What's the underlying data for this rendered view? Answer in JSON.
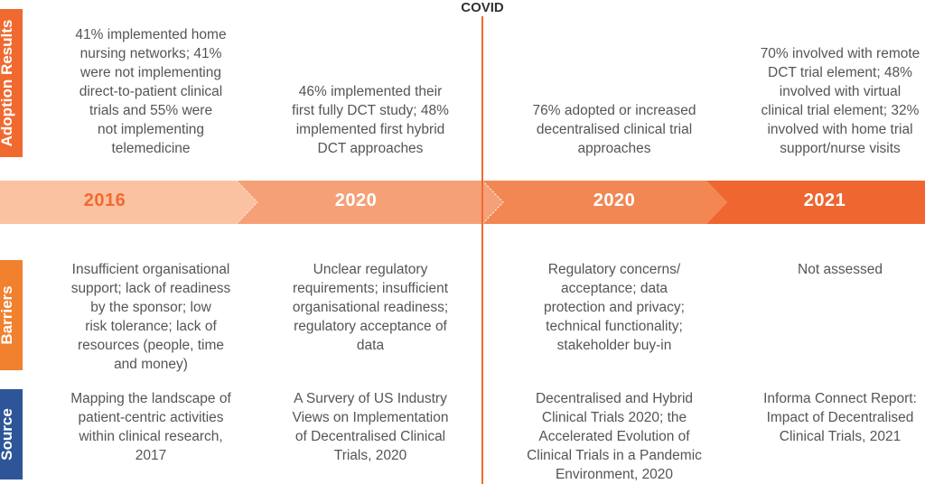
{
  "covid_label": "COVID",
  "row_labels": {
    "adoption": "Adoption Results",
    "barriers": "Barriers",
    "source": "Source"
  },
  "colors": {
    "adoption": "#f06a30",
    "barriers": "#f1802f",
    "source": "#2e5597",
    "seg1": "#fbc2a2",
    "seg2": "#f5a077",
    "seg3": "#f28753",
    "seg4": "#ef6631"
  },
  "columns": [
    {
      "year": "2016",
      "adoption": "41% implemented home\nnursing networks; 41%\nwere not implementing\ndirect-to-patient clinical\ntrials and 55% were\nnot implementing\ntelemedicine",
      "barriers": "Insufficient organisational\nsupport; lack of readiness\nby the sponsor; low\nrisk tolerance; lack of\nresources (people, time\nand money)",
      "source": "Mapping the landscape of\npatient-centric activities\nwithin clinical research,\n2017"
    },
    {
      "year": "2020",
      "adoption": "46% implemented their\nfirst fully DCT study; 48%\nimplemented first hybrid\nDCT approaches",
      "barriers": "Unclear regulatory\nrequirements; insufficient\norganisational readiness;\nregulatory acceptance of\ndata",
      "source": "A Survery of US Industry\nViews on Implementation\nof Decentralised Clinical\nTrials, 2020"
    },
    {
      "year": "2020",
      "adoption": "76% adopted or increased\ndecentralised clinical trial\napproaches",
      "barriers": "Regulatory concerns/\nacceptance; data\nprotection and privacy;\ntechnical functionality;\nstakeholder buy-in",
      "source": "Decentralised and Hybrid\nClinical Trials 2020; the\nAccelerated Evolution of\nClinical Trials in a Pandemic\nEnvironment, 2020"
    },
    {
      "year": "2021",
      "adoption": "70% involved with remote\nDCT trial element; 48%\ninvolved with virtual\nclinical trial element; 32%\ninvolved with home trial\nsupport/nurse visits",
      "barriers": "Not assessed",
      "source": "Informa Connect Report:\nImpact of Decentralised\nClinical Trials, 2021"
    }
  ]
}
